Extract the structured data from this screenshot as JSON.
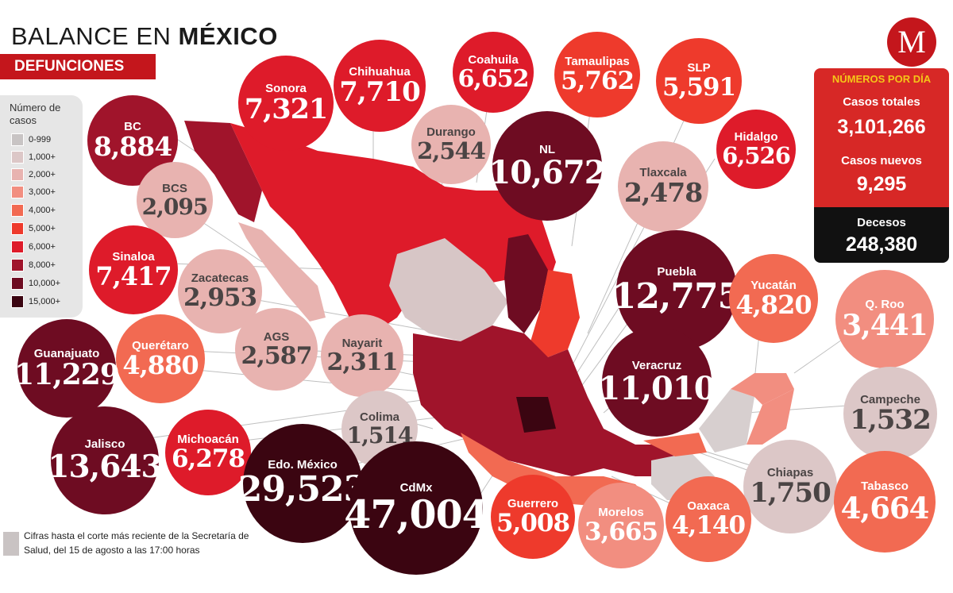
{
  "header": {
    "title_light": "BALANCE EN ",
    "title_bold": "MÉXICO",
    "subtitle": "DEFUNCIONES",
    "logo": "M"
  },
  "legend": {
    "title": "Número de casos",
    "items": [
      {
        "label": "0-999",
        "color": "#c8c4c4"
      },
      {
        "label": "1,000+",
        "color": "#dcc7c7"
      },
      {
        "label": "2,000+",
        "color": "#e8b3b0"
      },
      {
        "label": "3,000+",
        "color": "#f28e80"
      },
      {
        "label": "4,000+",
        "color": "#f26a52"
      },
      {
        "label": "5,000+",
        "color": "#ee3a2c"
      },
      {
        "label": "6,000+",
        "color": "#de1b2a"
      },
      {
        "label": "8,000+",
        "color": "#a0142b"
      },
      {
        "label": "10,000+",
        "color": "#6e0c22"
      },
      {
        "label": "15,000+",
        "color": "#3b0511"
      }
    ]
  },
  "states": [
    {
      "name": "BC",
      "value": "8,884",
      "color": "#a0142b"
    },
    {
      "name": "Sonora",
      "value": "7,321",
      "color": "#de1b2a"
    },
    {
      "name": "Chihuahua",
      "value": "7,710",
      "color": "#de1b2a"
    },
    {
      "name": "Coahuila",
      "value": "6,652",
      "color": "#de1b2a"
    },
    {
      "name": "Tamaulipas",
      "value": "5,762",
      "color": "#ee3a2c"
    },
    {
      "name": "SLP",
      "value": "5,591",
      "color": "#ee3a2c"
    },
    {
      "name": "Durango",
      "value": "2,544",
      "color": "#e8b3b0"
    },
    {
      "name": "NL",
      "value": "10,672",
      "color": "#6e0c22"
    },
    {
      "name": "Hidalgo",
      "value": "6,526",
      "color": "#de1b2a"
    },
    {
      "name": "BCS",
      "value": "2,095",
      "color": "#e8b3b0"
    },
    {
      "name": "Tlaxcala",
      "value": "2,478",
      "color": "#e8b3b0"
    },
    {
      "name": "Sinaloa",
      "value": "7,417",
      "color": "#de1b2a"
    },
    {
      "name": "Zacatecas",
      "value": "2,953",
      "color": "#e8b3b0"
    },
    {
      "name": "Puebla",
      "value": "12,775",
      "color": "#6e0c22"
    },
    {
      "name": "Yucatán",
      "value": "4,820",
      "color": "#f26a52"
    },
    {
      "name": "Q. Roo",
      "value": "3,441",
      "color": "#f28e80"
    },
    {
      "name": "Querétaro",
      "value": "4,880",
      "color": "#f26a52"
    },
    {
      "name": "AGS",
      "value": "2,587",
      "color": "#e8b3b0"
    },
    {
      "name": "Nayarit",
      "value": "2,311",
      "color": "#e8b3b0"
    },
    {
      "name": "Guanajuato",
      "value": "11,229",
      "color": "#6e0c22"
    },
    {
      "name": "Veracruz",
      "value": "11,010",
      "color": "#6e0c22"
    },
    {
      "name": "Campeche",
      "value": "1,532",
      "color": "#dcc7c7"
    },
    {
      "name": "Colima",
      "value": "1,514",
      "color": "#dcc7c7"
    },
    {
      "name": "Jalisco",
      "value": "13,643",
      "color": "#6e0c22"
    },
    {
      "name": "Michoacán",
      "value": "6,278",
      "color": "#de1b2a"
    },
    {
      "name": "Edo. México",
      "value": "29,523",
      "color": "#3b0511"
    },
    {
      "name": "CdMx",
      "value": "47,004",
      "color": "#3b0511"
    },
    {
      "name": "Chiapas",
      "value": "1,750",
      "color": "#dcc7c7"
    },
    {
      "name": "Tabasco",
      "value": "4,664",
      "color": "#f26a52"
    },
    {
      "name": "Guerrero",
      "value": "5,008",
      "color": "#ee3a2c"
    },
    {
      "name": "Morelos",
      "value": "3,665",
      "color": "#f28e80"
    },
    {
      "name": "Oaxaca",
      "value": "4,140",
      "color": "#f26a52"
    }
  ],
  "daily": {
    "header": "NÚMEROS POR DÍA",
    "total_label": "Casos totales",
    "total_value": "3,101,266",
    "new_label": "Casos nuevos",
    "new_value": "9,295",
    "deaths_label": "Decesos",
    "deaths_value": "248,380"
  },
  "footnote": "Cifras hasta el corte más reciente de la Secretaría de Salud, del 15 de agosto a las 17:00 horas",
  "map_colors": {
    "main_red": "#de1b2a",
    "dark": "#6e0c22",
    "darkest": "#3b0511",
    "light": "#d7cfcf"
  }
}
